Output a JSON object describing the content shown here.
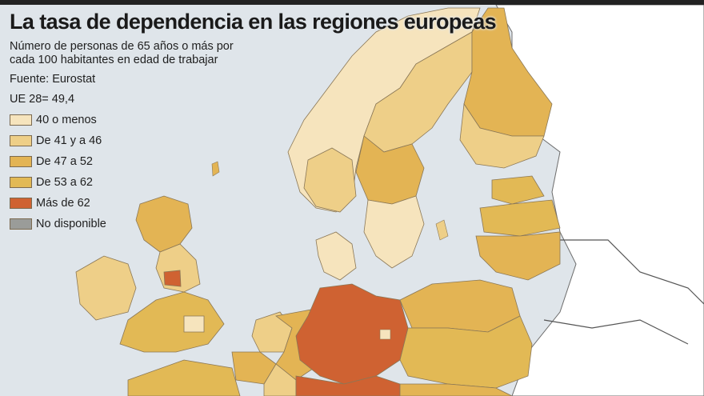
{
  "title": "La tasa de dependencia en las regiones europeas",
  "subtitle": "Número de personas de 65 años o más por cada 100 habitantes en edad de trabajar",
  "source": "Fuente: Eurostat",
  "eu_average": "UE 28= 49,4",
  "legend": [
    {
      "label": "40 o menos",
      "color": "#f6e4bd"
    },
    {
      "label": "De 41 y a 46",
      "color": "#eecf88"
    },
    {
      "label": "De 47 a 52",
      "color": "#e3b454"
    },
    {
      "label": "De 53 a 62",
      "color": "#e2b955"
    },
    {
      "label": "Más de 62",
      "color": "#cf6232"
    },
    {
      "label": "No disponible",
      "color": "#9a9c99"
    }
  ],
  "colors": {
    "sea": "#dfe5ea",
    "land_outside": "#ffffff",
    "border": "#8a7756"
  }
}
